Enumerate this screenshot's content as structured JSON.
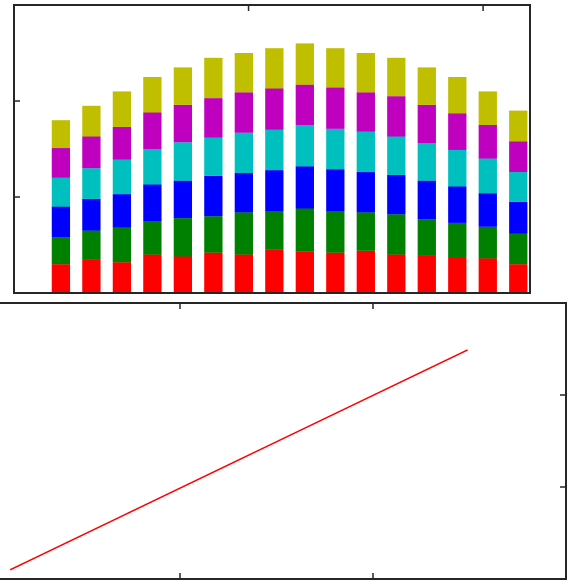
{
  "chart_data": [
    {
      "type": "bar",
      "stacked": true,
      "x": [
        0.2,
        0.33,
        0.46,
        0.59,
        0.72,
        0.85,
        0.98,
        1.11,
        1.24,
        1.37,
        1.5,
        1.63,
        1.76,
        1.89,
        2.02,
        2.15
      ],
      "series": [
        {
          "color": "#ff0000",
          "values": [
            0.3,
            0.35,
            0.32,
            0.4,
            0.38,
            0.42,
            0.4,
            0.45,
            0.43,
            0.42,
            0.44,
            0.4,
            0.39,
            0.37,
            0.36,
            0.3
          ]
        },
        {
          "color": "#008000",
          "values": [
            0.28,
            0.3,
            0.36,
            0.35,
            0.4,
            0.38,
            0.44,
            0.4,
            0.45,
            0.43,
            0.4,
            0.42,
            0.38,
            0.36,
            0.33,
            0.32
          ]
        },
        {
          "color": "#0000ff",
          "values": [
            0.32,
            0.33,
            0.35,
            0.38,
            0.39,
            0.42,
            0.41,
            0.43,
            0.44,
            0.44,
            0.42,
            0.41,
            0.4,
            0.38,
            0.35,
            0.33
          ]
        },
        {
          "color": "#00bfbf",
          "values": [
            0.3,
            0.32,
            0.36,
            0.37,
            0.4,
            0.4,
            0.42,
            0.42,
            0.43,
            0.42,
            0.42,
            0.4,
            0.39,
            0.38,
            0.36,
            0.31
          ]
        },
        {
          "color": "#bf00bf",
          "values": [
            0.31,
            0.33,
            0.34,
            0.38,
            0.39,
            0.41,
            0.42,
            0.43,
            0.42,
            0.43,
            0.41,
            0.42,
            0.4,
            0.38,
            0.35,
            0.32
          ]
        },
        {
          "color": "#bfbf00",
          "values": [
            0.29,
            0.32,
            0.37,
            0.37,
            0.39,
            0.42,
            0.41,
            0.42,
            0.43,
            0.41,
            0.41,
            0.4,
            0.39,
            0.38,
            0.35,
            0.32
          ]
        }
      ],
      "xlim": [
        0,
        2.2
      ],
      "ylim": [
        0,
        3
      ],
      "xticks": [
        1,
        2
      ],
      "yticks": [
        1,
        2
      ]
    },
    {
      "type": "line",
      "series": [
        {
          "color": "#ff0000",
          "x": [
            0.12,
            1.3,
            2.49
          ],
          "values": [
            0.1,
            1.29,
            2.49
          ]
        }
      ],
      "xlim": [
        0,
        3
      ],
      "ylim": [
        0,
        3
      ],
      "xticks": [
        1,
        2
      ],
      "yticks": [
        1,
        2
      ]
    }
  ]
}
